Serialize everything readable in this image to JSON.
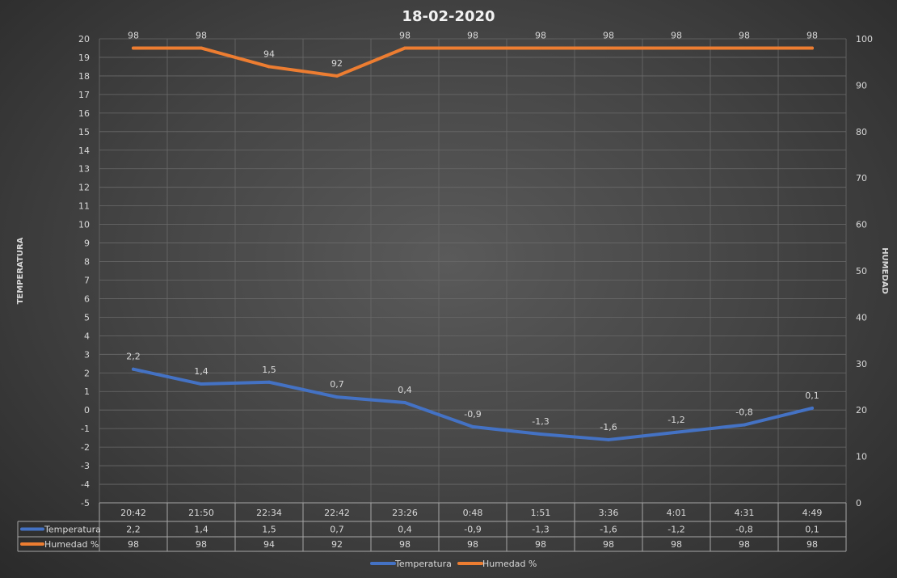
{
  "chart_data": {
    "type": "line",
    "title": "18-02-2020",
    "categories": [
      "20:42",
      "21:50",
      "22:34",
      "22:42",
      "23:26",
      "0:48",
      "1:51",
      "3:36",
      "4:01",
      "4:31",
      "4:49"
    ],
    "y_left": {
      "label": "TEMPERATURA",
      "range": [
        -5,
        20
      ],
      "step": 1
    },
    "y_right": {
      "label": "HUMEDAD",
      "range": [
        0,
        100
      ],
      "step": 10
    },
    "grid": true,
    "legend": "bottom",
    "data_table": true,
    "series": [
      {
        "name": "Temperatura",
        "axis": "left",
        "color": "#4472c4",
        "values": [
          2.2,
          1.4,
          1.5,
          0.7,
          0.4,
          -0.9,
          -1.3,
          -1.6,
          -1.2,
          -0.8,
          0.1
        ],
        "labels": [
          "2,2",
          "1,4",
          "1,5",
          "0,7",
          "0,4",
          "-0,9",
          "-1,3",
          "-1,6",
          "-1,2",
          "-0,8",
          "0,1"
        ]
      },
      {
        "name": "Humedad %",
        "axis": "right",
        "color": "#ed7d31",
        "values": [
          98,
          98,
          94,
          92,
          98,
          98,
          98,
          98,
          98,
          98,
          98
        ],
        "labels": [
          "98",
          "98",
          "94",
          "92",
          "98",
          "98",
          "98",
          "98",
          "98",
          "98",
          "98"
        ]
      }
    ]
  }
}
